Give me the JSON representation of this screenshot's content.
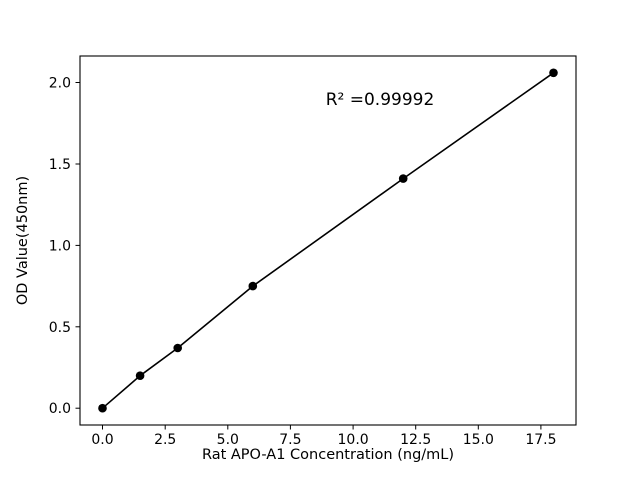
{
  "figure": {
    "background": "#ffffff"
  },
  "chart_data": {
    "type": "line",
    "title": "",
    "xlabel": "Rat APO-A1 Concentration (ng/mL)",
    "ylabel": "OD Value(450nm)",
    "annotation": "R² =0.99992",
    "series": [
      {
        "name": "standard-curve",
        "x": [
          0.0,
          1.5,
          3.0,
          6.0,
          12.0,
          18.0
        ],
        "y": [
          0.0,
          0.2,
          0.37,
          0.75,
          1.41,
          2.06
        ]
      }
    ],
    "xticks": [
      0.0,
      2.5,
      5.0,
      7.5,
      10.0,
      12.5,
      15.0,
      17.5
    ],
    "xtick_labels": [
      "0.0",
      "2.5",
      "5.0",
      "7.5",
      "10.0",
      "12.5",
      "15.0",
      "17.5"
    ],
    "yticks": [
      0.0,
      0.5,
      1.0,
      1.5,
      2.0
    ],
    "ytick_labels": [
      "0.0",
      "0.5",
      "1.0",
      "1.5",
      "2.0"
    ],
    "xlim": [
      -0.9,
      18.9
    ],
    "ylim": [
      -0.103,
      2.163
    ],
    "grid": false,
    "legend": "none",
    "marker": "circle",
    "line_color": "#000000",
    "marker_color": "#000000",
    "axis_color": "#000000",
    "background_color": "#ffffff"
  }
}
